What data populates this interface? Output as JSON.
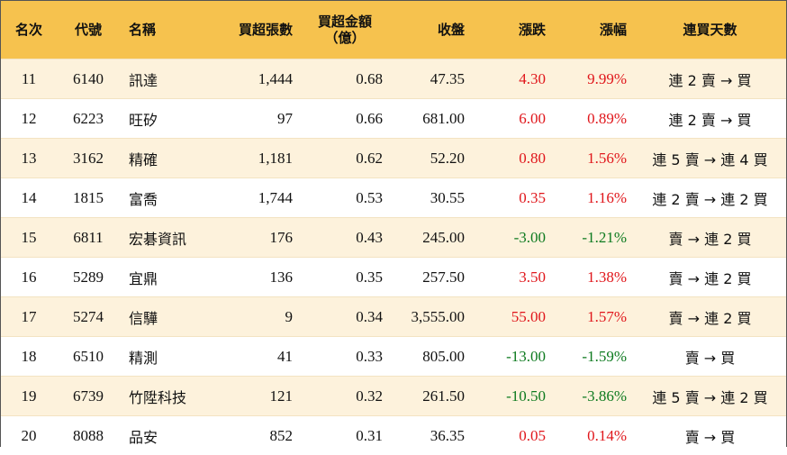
{
  "headers": {
    "rank": "名次",
    "code": "代號",
    "name": "名稱",
    "buy_lots": "買超張數",
    "buy_amount_line1": "買超金額",
    "buy_amount_line2": "（億）",
    "close": "收盤",
    "change": "漲跌",
    "change_pct": "漲幅",
    "streak": "連買天數"
  },
  "rows": [
    {
      "rank": "11",
      "code": "6140",
      "name": "訊達",
      "lots": "1,444",
      "amount": "0.68",
      "close": "47.35",
      "change": "4.30",
      "pct": "9.99%",
      "dir": "up",
      "streak": "連 2 賣 → 買"
    },
    {
      "rank": "12",
      "code": "6223",
      "name": "旺矽",
      "lots": "97",
      "amount": "0.66",
      "close": "681.00",
      "change": "6.00",
      "pct": "0.89%",
      "dir": "up",
      "streak": "連 2 賣 → 買"
    },
    {
      "rank": "13",
      "code": "3162",
      "name": "精確",
      "lots": "1,181",
      "amount": "0.62",
      "close": "52.20",
      "change": "0.80",
      "pct": "1.56%",
      "dir": "up",
      "streak": "連 5 賣 → 連 4 買"
    },
    {
      "rank": "14",
      "code": "1815",
      "name": "富喬",
      "lots": "1,744",
      "amount": "0.53",
      "close": "30.55",
      "change": "0.35",
      "pct": "1.16%",
      "dir": "up",
      "streak": "連 2 賣 → 連 2 買"
    },
    {
      "rank": "15",
      "code": "6811",
      "name": "宏碁資訊",
      "lots": "176",
      "amount": "0.43",
      "close": "245.00",
      "change": "-3.00",
      "pct": "-1.21%",
      "dir": "down",
      "streak": "賣 → 連 2 買"
    },
    {
      "rank": "16",
      "code": "5289",
      "name": "宜鼎",
      "lots": "136",
      "amount": "0.35",
      "close": "257.50",
      "change": "3.50",
      "pct": "1.38%",
      "dir": "up",
      "streak": "賣 → 連 2 買"
    },
    {
      "rank": "17",
      "code": "5274",
      "name": "信驊",
      "lots": "9",
      "amount": "0.34",
      "close": "3,555.00",
      "change": "55.00",
      "pct": "1.57%",
      "dir": "up",
      "streak": "賣 → 連 2 買"
    },
    {
      "rank": "18",
      "code": "6510",
      "name": "精測",
      "lots": "41",
      "amount": "0.33",
      "close": "805.00",
      "change": "-13.00",
      "pct": "-1.59%",
      "dir": "down",
      "streak": "賣 → 買"
    },
    {
      "rank": "19",
      "code": "6739",
      "name": "竹陞科技",
      "lots": "121",
      "amount": "0.32",
      "close": "261.50",
      "change": "-10.50",
      "pct": "-3.86%",
      "dir": "down",
      "streak": "連 5 賣 → 連 2 買"
    },
    {
      "rank": "20",
      "code": "8088",
      "name": "品安",
      "lots": "852",
      "amount": "0.31",
      "close": "36.35",
      "change": "0.05",
      "pct": "0.14%",
      "dir": "up",
      "streak": "賣 → 買"
    }
  ],
  "colors": {
    "header_bg": "#f6c24e",
    "odd_row_bg": "#fdf2dc",
    "up": "#e0161b",
    "down": "#0d7a1f"
  }
}
